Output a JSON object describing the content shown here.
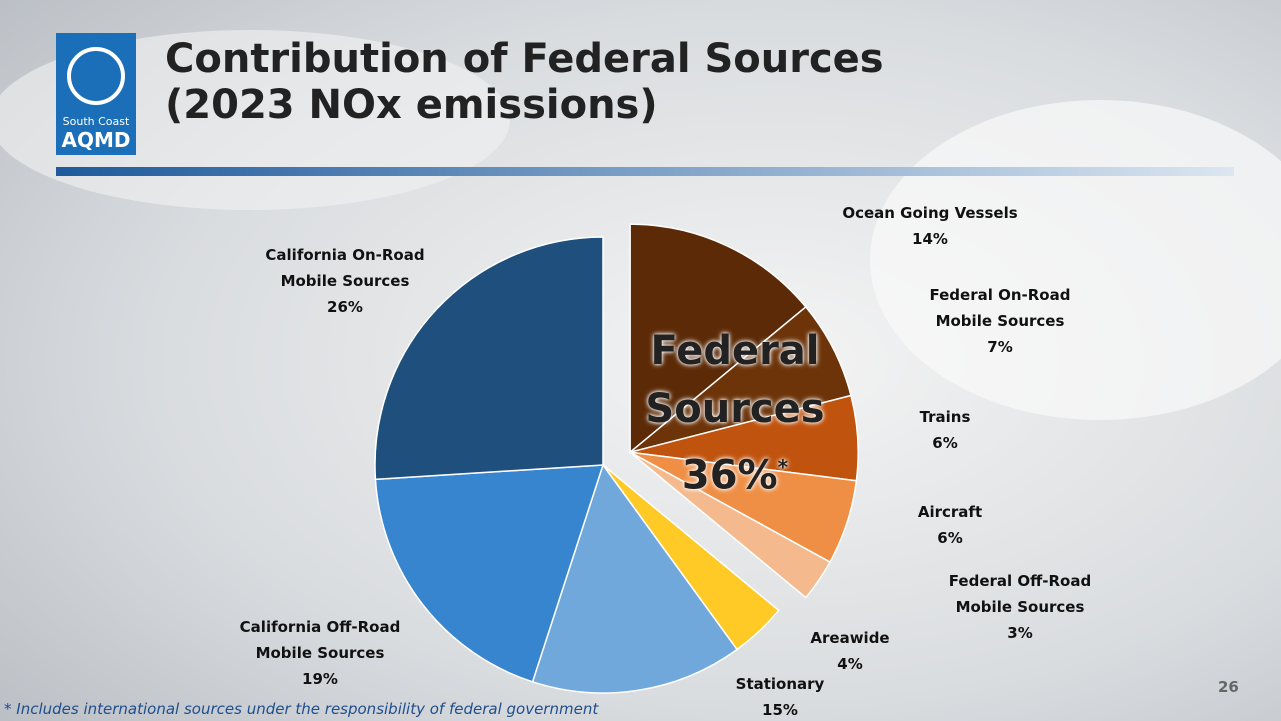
{
  "logo": {
    "line1": "South Coast",
    "line2": "AQMD"
  },
  "page_number": "26",
  "footnote": "* Includes international sources under the responsibility of federal government",
  "chart_data": {
    "type": "pie",
    "title": "Contribution of Federal Sources (2023 NOx emissions)",
    "annotation": {
      "text": "Federal Sources",
      "value": "36%",
      "marker": "*"
    },
    "categories": [
      "Ocean Going Vessels",
      "Federal On-Road Mobile Sources",
      "Trains",
      "Aircraft",
      "Federal Off-Road Mobile Sources",
      "Areawide",
      "Stationary",
      "California Off-Road Mobile Sources",
      "California On-Road Mobile Sources"
    ],
    "values": [
      14,
      7,
      6,
      6,
      3,
      4,
      15,
      19,
      26
    ],
    "value_labels": [
      "14%",
      "7%",
      "6%",
      "6%",
      "3%",
      "4%",
      "15%",
      "19%",
      "26%"
    ],
    "colors": [
      "#5c2a07",
      "#6d3409",
      "#c0530e",
      "#ef8f45",
      "#f4b98c",
      "#ffc926",
      "#70a8dc",
      "#3784cf",
      "#1f4f7c"
    ],
    "exploded": [
      true,
      true,
      true,
      true,
      true,
      false,
      false,
      false,
      false
    ]
  }
}
